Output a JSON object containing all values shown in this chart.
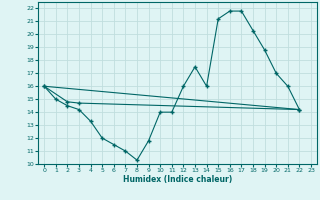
{
  "xlabel": "Humidex (Indice chaleur)",
  "xlim": [
    -0.5,
    23.5
  ],
  "ylim": [
    10,
    22.5
  ],
  "yticks": [
    10,
    11,
    12,
    13,
    14,
    15,
    16,
    17,
    18,
    19,
    20,
    21,
    22
  ],
  "xticks": [
    0,
    1,
    2,
    3,
    4,
    5,
    6,
    7,
    8,
    9,
    10,
    11,
    12,
    13,
    14,
    15,
    16,
    17,
    18,
    19,
    20,
    21,
    22,
    23
  ],
  "line_color": "#006666",
  "bg_color": "#dff4f4",
  "grid_color": "#c0dede",
  "line1_x": [
    0,
    1,
    2,
    3,
    4,
    5,
    6,
    7,
    8,
    9,
    10,
    11,
    12,
    13,
    14,
    15,
    16,
    17,
    18,
    19,
    20,
    21,
    22
  ],
  "line1_y": [
    16.0,
    15.0,
    14.5,
    14.2,
    13.3,
    12.0,
    11.5,
    11.0,
    10.3,
    11.8,
    14.0,
    14.0,
    16.0,
    17.5,
    16.0,
    21.2,
    21.8,
    21.8,
    20.3,
    18.8,
    17.0,
    16.0,
    14.2
  ],
  "line2_x": [
    0,
    2,
    3,
    22
  ],
  "line2_y": [
    16.0,
    14.8,
    14.7,
    14.2
  ],
  "line3_x": [
    0,
    22
  ],
  "line3_y": [
    16.0,
    14.2
  ]
}
